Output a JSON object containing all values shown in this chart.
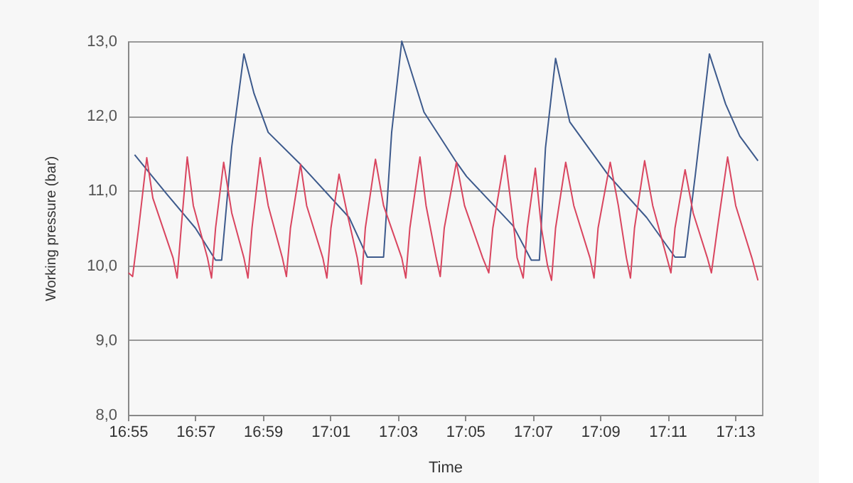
{
  "chart_data": {
    "type": "line",
    "xlabel": "Time",
    "ylabel": "Working pressure (bar)",
    "xlim": [
      16.9167,
      17.23
    ],
    "ylim": [
      8,
      13
    ],
    "xticks": [
      {
        "value": 16.9167,
        "label": "16:55"
      },
      {
        "value": 16.95,
        "label": "16:57"
      },
      {
        "value": 16.9833,
        "label": "16:59"
      },
      {
        "value": 17.0167,
        "label": "17:01"
      },
      {
        "value": 17.05,
        "label": "17:03"
      },
      {
        "value": 17.0833,
        "label": "17:05"
      },
      {
        "value": 17.1167,
        "label": "17:07"
      },
      {
        "value": 17.15,
        "label": "17:09"
      },
      {
        "value": 17.1833,
        "label": "17:11"
      },
      {
        "value": 17.2167,
        "label": "17:13"
      }
    ],
    "yticks": [
      {
        "value": 8,
        "label": "8,0"
      },
      {
        "value": 9,
        "label": "9,0"
      },
      {
        "value": 10,
        "label": "10,0"
      },
      {
        "value": 11,
        "label": "11,0"
      },
      {
        "value": 12,
        "label": "12,0"
      },
      {
        "value": 13,
        "label": "13,0"
      }
    ],
    "grid": "y",
    "marker": "none",
    "line_style": "solid",
    "series": [
      {
        "color": "#3d5a8c",
        "x": [
          16.92,
          16.936,
          16.95,
          16.96,
          16.963,
          16.968,
          16.974,
          16.979,
          16.986,
          17.002,
          17.026,
          17.035,
          17.043,
          17.047,
          17.052,
          17.063,
          17.079,
          17.084,
          17.107,
          17.116,
          17.12,
          17.123,
          17.128,
          17.135,
          17.154,
          17.173,
          17.187,
          17.192,
          17.197,
          17.204,
          17.212,
          17.219,
          17.228
        ],
        "values": [
          11.48,
          10.95,
          10.5,
          10.07,
          10.07,
          11.59,
          12.83,
          12.3,
          11.78,
          11.35,
          10.64,
          10.11,
          10.11,
          11.78,
          13.0,
          12.05,
          11.38,
          11.19,
          10.53,
          10.07,
          10.07,
          11.57,
          12.77,
          11.92,
          11.21,
          10.64,
          10.11,
          10.11,
          11.2,
          12.83,
          12.16,
          11.73,
          11.4
        ]
      },
      {
        "color": "#d9455f",
        "x": [
          16.917,
          16.919,
          16.922,
          16.926,
          16.929,
          16.939,
          16.941,
          16.943,
          16.946,
          16.949,
          16.956,
          16.958,
          16.96,
          16.964,
          16.968,
          16.974,
          16.976,
          16.978,
          16.982,
          16.986,
          16.993,
          16.995,
          16.997,
          17.002,
          17.005,
          17.013,
          17.015,
          17.017,
          17.021,
          17.025,
          17.03,
          17.032,
          17.034,
          17.039,
          17.043,
          17.052,
          17.054,
          17.056,
          17.061,
          17.064,
          17.069,
          17.071,
          17.073,
          17.079,
          17.083,
          17.092,
          17.095,
          17.097,
          17.103,
          17.107,
          17.109,
          17.112,
          17.114,
          17.118,
          17.121,
          17.124,
          17.126,
          17.128,
          17.133,
          17.137,
          17.145,
          17.147,
          17.149,
          17.155,
          17.159,
          17.163,
          17.165,
          17.167,
          17.172,
          17.176,
          17.183,
          17.185,
          17.187,
          17.192,
          17.196,
          17.203,
          17.205,
          17.208,
          17.213,
          17.217,
          17.225,
          17.228
        ],
        "values": [
          9.9,
          9.85,
          10.5,
          11.44,
          10.9,
          10.1,
          9.83,
          10.5,
          11.45,
          10.8,
          10.1,
          9.83,
          10.5,
          11.38,
          10.7,
          10.1,
          9.83,
          10.5,
          11.44,
          10.8,
          10.1,
          9.85,
          10.5,
          11.35,
          10.8,
          10.1,
          9.83,
          10.5,
          11.22,
          10.7,
          10.1,
          9.75,
          10.5,
          11.42,
          10.8,
          10.1,
          9.83,
          10.5,
          11.45,
          10.8,
          10.1,
          9.85,
          10.5,
          11.38,
          10.8,
          10.1,
          9.9,
          10.5,
          11.47,
          10.6,
          10.1,
          9.83,
          10.5,
          11.3,
          10.5,
          10.0,
          9.8,
          10.5,
          11.38,
          10.8,
          10.1,
          9.83,
          10.5,
          11.38,
          10.8,
          10.1,
          9.83,
          10.5,
          11.4,
          10.8,
          10.1,
          9.9,
          10.5,
          11.28,
          10.7,
          10.1,
          9.9,
          10.5,
          11.45,
          10.8,
          10.1,
          9.8
        ]
      }
    ]
  }
}
